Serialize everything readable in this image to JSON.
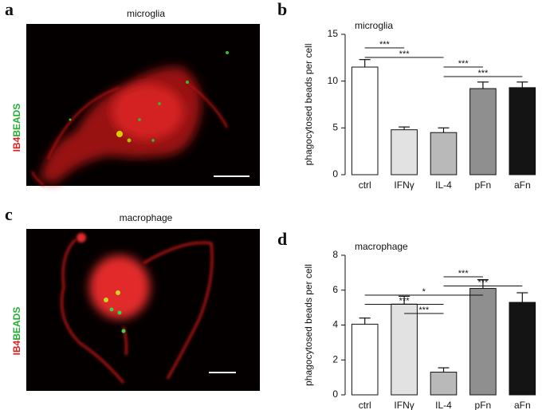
{
  "panels": [
    {
      "letter": "a",
      "title": "microglia",
      "stain_red": "IB4",
      "stain_green": "BEADS"
    },
    {
      "letter": "b"
    },
    {
      "letter": "c",
      "title": "macrophage",
      "stain_red": "IB4",
      "stain_green": "BEADS"
    },
    {
      "letter": "d"
    }
  ],
  "chart_data": [
    {
      "type": "bar",
      "title": "microglia",
      "y_label": "phagocytosed beads per cell",
      "categories": [
        "ctrl",
        "IFNγ",
        "IL-4",
        "pFn",
        "aFn"
      ],
      "values": [
        11.5,
        4.8,
        4.5,
        9.2,
        9.3
      ],
      "errors": [
        0.8,
        0.3,
        0.5,
        0.7,
        0.6
      ],
      "colors": [
        "#ffffff",
        "#e2e2e2",
        "#b9b9b9",
        "#8f8f8f",
        "#141414"
      ],
      "ylim": [
        0,
        15
      ],
      "yticks": [
        0,
        5,
        10,
        15
      ],
      "significance": [
        {
          "label": "***",
          "from": "ctrl",
          "to": "IFNγ"
        },
        {
          "label": "***",
          "from": "ctrl",
          "to": "IL-4"
        },
        {
          "label": "***",
          "from": "IL-4",
          "to": "pFn"
        },
        {
          "label": "***",
          "from": "IL-4",
          "to": "aFn"
        }
      ]
    },
    {
      "type": "bar",
      "title": "macrophage",
      "y_label": "phagocytosed beads per cell",
      "categories": [
        "ctrl",
        "IFNγ",
        "IL-4",
        "pFn",
        "aFn"
      ],
      "values": [
        4.05,
        5.2,
        1.3,
        6.1,
        5.3
      ],
      "errors": [
        0.35,
        0.45,
        0.25,
        0.5,
        0.55
      ],
      "colors": [
        "#ffffff",
        "#e2e2e2",
        "#b9b9b9",
        "#8f8f8f",
        "#141414"
      ],
      "ylim": [
        0,
        8
      ],
      "yticks": [
        0,
        2,
        4,
        6,
        8
      ],
      "significance": [
        {
          "label": "***",
          "from": "IL-4",
          "to": "pFn"
        },
        {
          "label": "***",
          "from": "IL-4",
          "to": "aFn"
        },
        {
          "label": "*",
          "from": "ctrl",
          "to": "pFn"
        },
        {
          "label": "***",
          "from": "ctrl",
          "to": "IL-4"
        },
        {
          "label": "***",
          "from": "IFNγ",
          "to": "IL-4"
        }
      ]
    }
  ]
}
